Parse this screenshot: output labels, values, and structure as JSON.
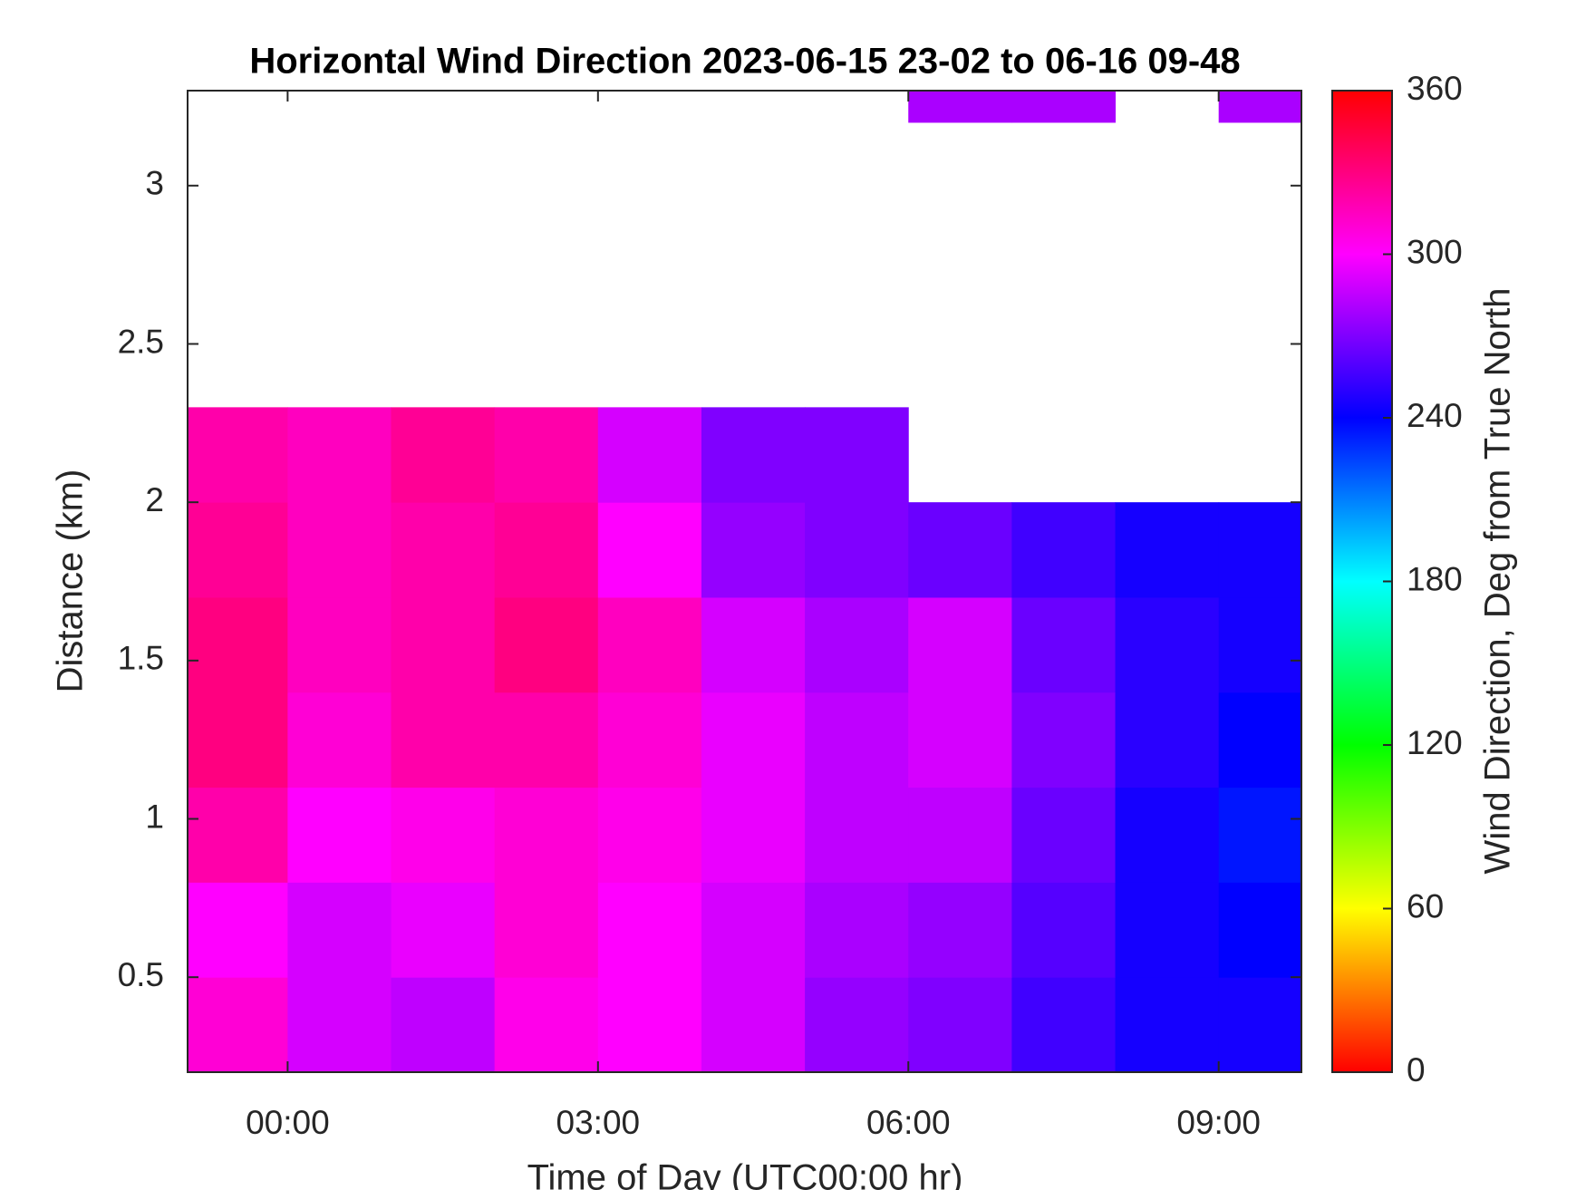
{
  "chart_data": {
    "type": "heatmap",
    "title": "Horizontal Wind Direction 2023-06-15 23-02 to 06-16 09-48",
    "xlabel": "Time of Day (UTC00:00 hr)",
    "ylabel": "Distance (km)",
    "colorbar_label": "Wind Direction, Deg from True North",
    "colormap": "hsv",
    "x": [
      -0.5,
      0.5,
      1.5,
      2.5,
      3.5,
      4.5,
      5.5,
      6.5,
      7.5,
      8.5,
      9.5
    ],
    "y": [
      0.35,
      0.65,
      0.95,
      1.25,
      1.55,
      1.85,
      2.15,
      2.45,
      2.75,
      3.05,
      3.35
    ],
    "z": [
      [
        310,
        290,
        285,
        305,
        300,
        290,
        275,
        270,
        255,
        245,
        245
      ],
      [
        300,
        290,
        295,
        310,
        300,
        290,
        280,
        275,
        260,
        245,
        240
      ],
      [
        320,
        300,
        305,
        310,
        305,
        295,
        285,
        285,
        265,
        245,
        235
      ],
      [
        330,
        310,
        320,
        320,
        310,
        295,
        285,
        290,
        270,
        250,
        240
      ],
      [
        330,
        315,
        320,
        330,
        315,
        290,
        280,
        290,
        265,
        250,
        245
      ],
      [
        325,
        315,
        320,
        325,
        300,
        275,
        270,
        265,
        255,
        245,
        245
      ],
      [
        320,
        315,
        325,
        320,
        290,
        270,
        270,
        null,
        null,
        null,
        null
      ],
      [
        null,
        null,
        null,
        null,
        null,
        null,
        null,
        null,
        null,
        null,
        null
      ],
      [
        null,
        null,
        null,
        null,
        null,
        null,
        null,
        null,
        null,
        null,
        null
      ],
      [
        null,
        null,
        null,
        null,
        null,
        null,
        null,
        null,
        null,
        null,
        null
      ],
      [
        null,
        null,
        null,
        null,
        null,
        null,
        null,
        280,
        280,
        null,
        280
      ]
    ],
    "xlim": [
      -0.967,
      9.8
    ],
    "xticks": [
      {
        "value": 0,
        "label": "00:00"
      },
      {
        "value": 3,
        "label": "03:00"
      },
      {
        "value": 6,
        "label": "06:00"
      },
      {
        "value": 9,
        "label": "09:00"
      }
    ],
    "ylim": [
      0.2,
      3.3
    ],
    "yticks": [
      0.5,
      1,
      1.5,
      2,
      2.5,
      3
    ],
    "clim": [
      0,
      360
    ],
    "cticks": [
      0,
      60,
      120,
      180,
      240,
      300,
      360
    ]
  }
}
